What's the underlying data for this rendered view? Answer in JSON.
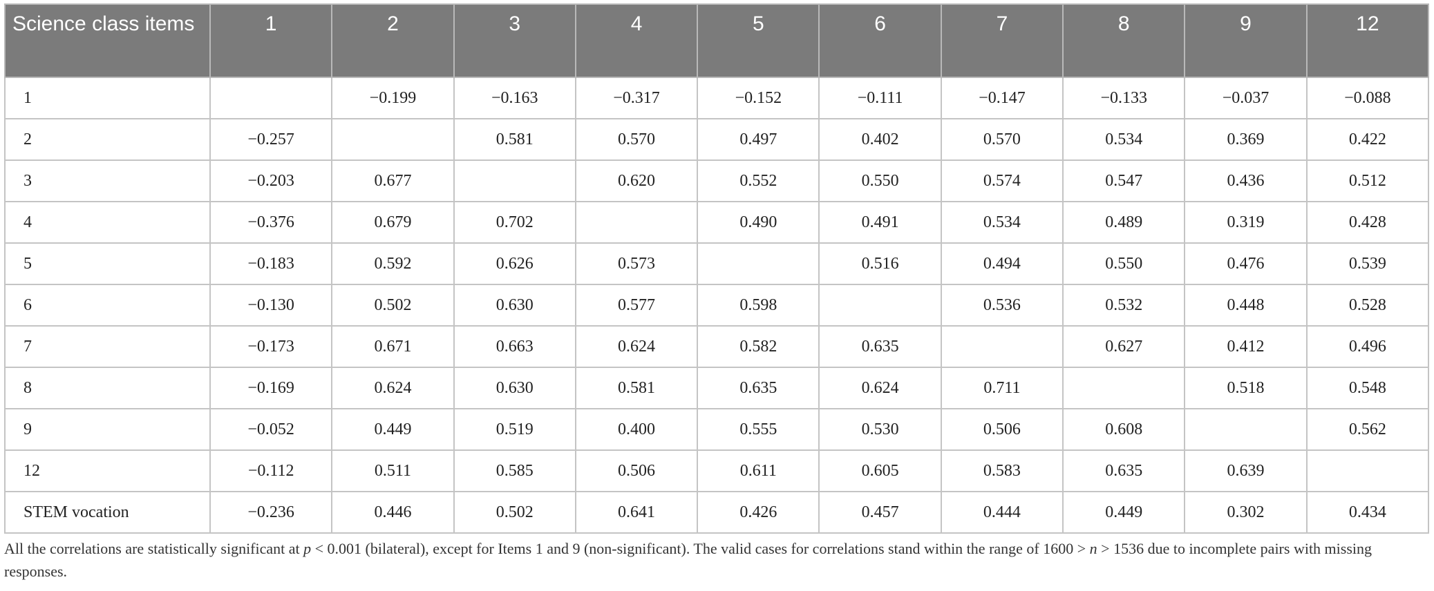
{
  "table": {
    "header": [
      "Science class items",
      "1",
      "2",
      "3",
      "4",
      "5",
      "6",
      "7",
      "8",
      "9",
      "12"
    ],
    "rows": [
      [
        "1",
        null,
        "−0.199",
        "−0.163",
        "−0.317",
        "−0.152",
        "−0.111",
        "−0.147",
        "−0.133",
        "−0.037",
        "−0.088"
      ],
      [
        "2",
        "−0.257",
        null,
        "0.581",
        "0.570",
        "0.497",
        "0.402",
        "0.570",
        "0.534",
        "0.369",
        "0.422"
      ],
      [
        "3",
        "−0.203",
        "0.677",
        null,
        "0.620",
        "0.552",
        "0.550",
        "0.574",
        "0.547",
        "0.436",
        "0.512"
      ],
      [
        "4",
        "−0.376",
        "0.679",
        "0.702",
        null,
        "0.490",
        "0.491",
        "0.534",
        "0.489",
        "0.319",
        "0.428"
      ],
      [
        "5",
        "−0.183",
        "0.592",
        "0.626",
        "0.573",
        null,
        "0.516",
        "0.494",
        "0.550",
        "0.476",
        "0.539"
      ],
      [
        "6",
        "−0.130",
        "0.502",
        "0.630",
        "0.577",
        "0.598",
        null,
        "0.536",
        "0.532",
        "0.448",
        "0.528"
      ],
      [
        "7",
        "−0.173",
        "0.671",
        "0.663",
        "0.624",
        "0.582",
        "0.635",
        null,
        "0.627",
        "0.412",
        "0.496"
      ],
      [
        "8",
        "−0.169",
        "0.624",
        "0.630",
        "0.581",
        "0.635",
        "0.624",
        "0.711",
        null,
        "0.518",
        "0.548"
      ],
      [
        "9",
        "−0.052",
        "0.449",
        "0.519",
        "0.400",
        "0.555",
        "0.530",
        "0.506",
        "0.608",
        null,
        "0.562"
      ],
      [
        "12",
        "−0.112",
        "0.511",
        "0.585",
        "0.506",
        "0.611",
        "0.605",
        "0.583",
        "0.635",
        "0.639",
        null
      ],
      [
        "STEM vocation",
        "−0.236",
        "0.446",
        "0.502",
        "0.641",
        "0.426",
        "0.457",
        "0.444",
        "0.449",
        "0.302",
        "0.434"
      ]
    ]
  },
  "note": [
    "All the correlations are statistically significant at ",
    "p",
    " < 0.001 (bilateral), except for Items 1 and 9 (non-significant). The valid cases for correlations stand within the range of 1600 > ",
    "n",
    " > 1536 due to incomplete pairs with missing responses."
  ]
}
